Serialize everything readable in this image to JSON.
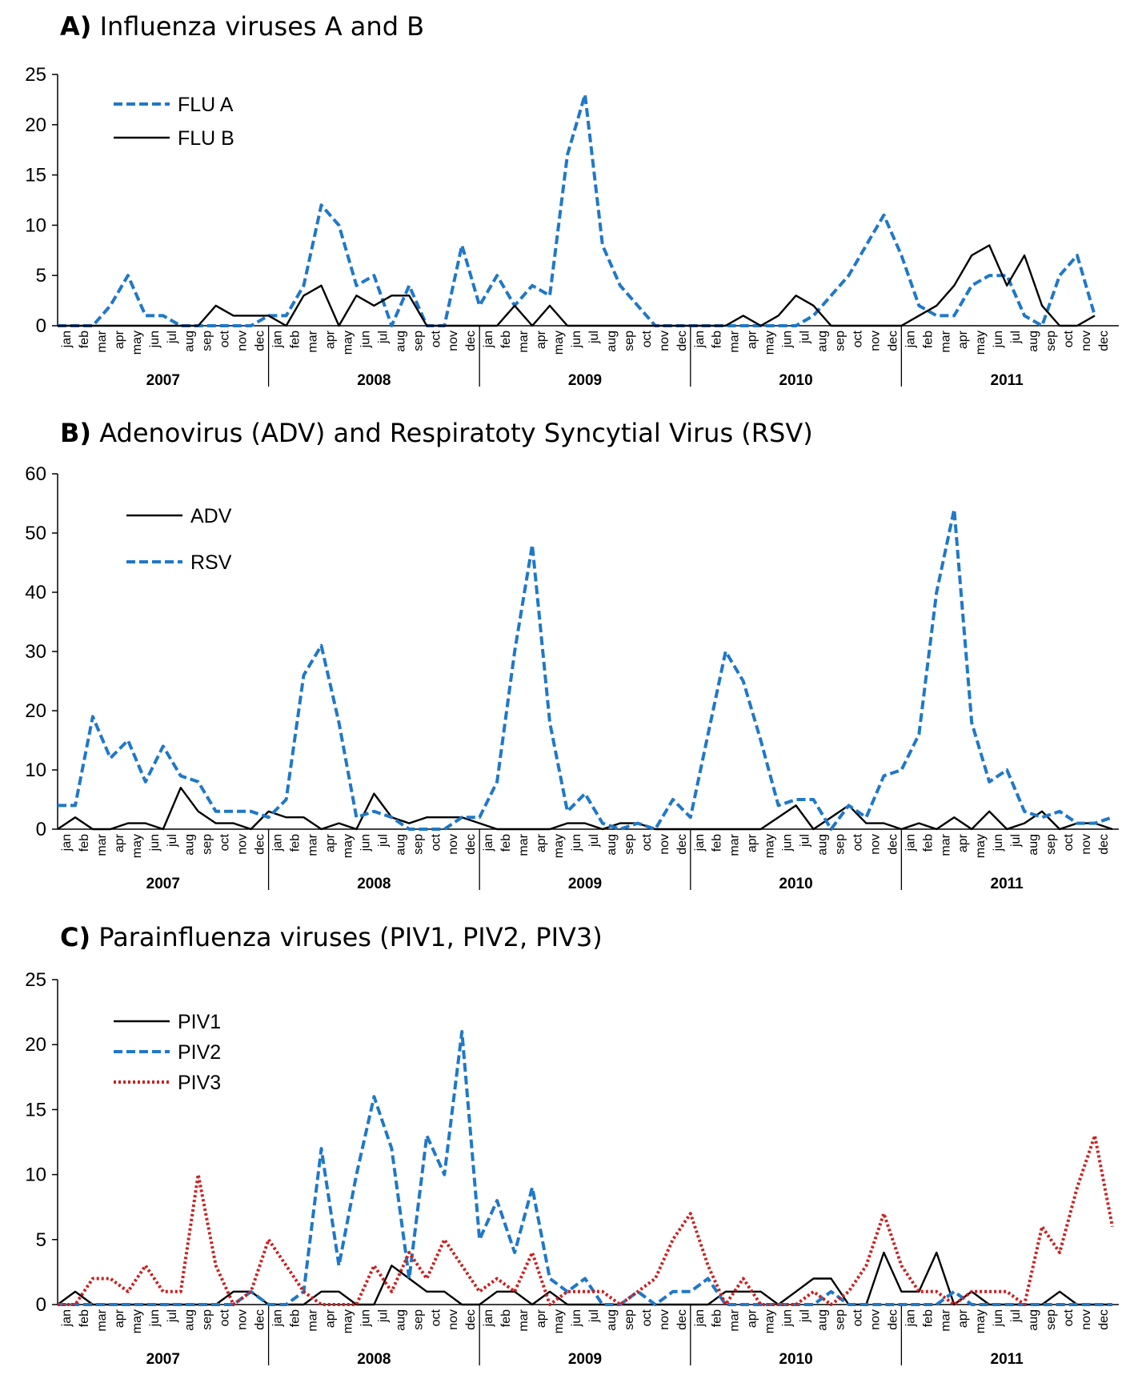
{
  "chart_data": [
    {
      "type": "line",
      "panel_letter": "A)",
      "title": "Influenza viruses A and B",
      "years": [
        "2007",
        "2008",
        "2009",
        "2010",
        "2011"
      ],
      "month_labels": [
        "jan",
        "feb",
        "mar",
        "apr",
        "may",
        "jun",
        "jul",
        "aug",
        "sep",
        "oct",
        "nov",
        "dec"
      ],
      "ylim": [
        0,
        25
      ],
      "yticks": [
        0,
        5,
        10,
        15,
        20,
        25
      ],
      "legend_position": "top-left",
      "series": [
        {
          "name": "FLU A",
          "color": "#1f78c8",
          "style": "dashed",
          "values": [
            0,
            0,
            0,
            2,
            5,
            1,
            1,
            0,
            0,
            0,
            0,
            0,
            1,
            1,
            4,
            12,
            10,
            4,
            5,
            0,
            4,
            0,
            0,
            8,
            2,
            5,
            2,
            4,
            3,
            17,
            23,
            8,
            4,
            2,
            0,
            0,
            0,
            0,
            0,
            0,
            0,
            0,
            0,
            1,
            3,
            5,
            8,
            11,
            7,
            2,
            1,
            1,
            4,
            5,
            5,
            1,
            0,
            5,
            7,
            1
          ]
        },
        {
          "name": "FLU B",
          "color": "#000000",
          "style": "solid",
          "values": [
            0,
            0,
            0,
            0,
            0,
            0,
            0,
            0,
            0,
            2,
            1,
            1,
            1,
            0,
            3,
            4,
            0,
            3,
            2,
            3,
            3,
            0,
            0,
            0,
            0,
            0,
            2,
            0,
            2,
            0,
            0,
            0,
            0,
            0,
            0,
            0,
            0,
            0,
            0,
            1,
            0,
            1,
            3,
            2,
            0,
            0,
            0,
            0,
            0,
            1,
            2,
            4,
            7,
            8,
            4,
            7,
            2,
            0,
            0,
            1
          ]
        }
      ]
    },
    {
      "type": "line",
      "panel_letter": "B)",
      "title": "Adenovirus (ADV) and Respiratoty Syncytial Virus (RSV)",
      "years": [
        "2007",
        "2008",
        "2009",
        "2010",
        "2011"
      ],
      "month_labels": [
        "jan",
        "feb",
        "mar",
        "apr",
        "may",
        "jun",
        "jul",
        "aug",
        "sep",
        "oct",
        "nov",
        "dec"
      ],
      "ylim": [
        0,
        60
      ],
      "yticks": [
        0,
        10,
        20,
        30,
        40,
        50,
        60
      ],
      "legend_position": "top-left",
      "series": [
        {
          "name": "ADV",
          "color": "#000000",
          "style": "solid",
          "values": [
            0,
            2,
            0,
            0,
            1,
            1,
            0,
            7,
            3,
            1,
            1,
            0,
            3,
            2,
            2,
            0,
            1,
            0,
            6,
            2,
            1,
            2,
            2,
            2,
            1,
            0,
            0,
            0,
            0,
            1,
            1,
            0,
            1,
            1,
            0,
            0,
            0,
            0,
            0,
            0,
            0,
            2,
            4,
            0,
            2,
            4,
            1,
            1,
            0,
            1,
            0,
            2,
            0,
            3,
            0,
            1,
            3,
            0,
            1,
            1,
            0
          ]
        },
        {
          "name": "RSV",
          "color": "#1f78c8",
          "style": "dashed",
          "values": [
            4,
            4,
            19,
            12,
            15,
            8,
            14,
            9,
            8,
            3,
            3,
            3,
            2,
            5,
            26,
            31,
            18,
            2,
            3,
            2,
            0,
            0,
            0,
            2,
            2,
            8,
            30,
            48,
            18,
            3,
            6,
            1,
            0,
            1,
            0,
            5,
            2,
            16,
            30,
            25,
            15,
            4,
            5,
            5,
            0,
            4,
            2,
            9,
            10,
            16,
            40,
            54,
            18,
            8,
            10,
            3,
            2,
            3,
            1,
            1,
            2
          ]
        }
      ]
    },
    {
      "type": "line",
      "panel_letter": "C)",
      "title": "Parainfluenza viruses (PIV1, PIV2, PIV3)",
      "years": [
        "2007",
        "2008",
        "2009",
        "2010",
        "2011"
      ],
      "month_labels": [
        "jan",
        "feb",
        "mar",
        "apr",
        "may",
        "jun",
        "jul",
        "aug",
        "sep",
        "oct",
        "nov",
        "dec"
      ],
      "ylim": [
        0,
        25
      ],
      "yticks": [
        0,
        5,
        10,
        15,
        20,
        25
      ],
      "legend_position": "top-left",
      "series": [
        {
          "name": "PIV1",
          "color": "#000000",
          "style": "solid",
          "values": [
            0,
            1,
            0,
            0,
            0,
            0,
            0,
            0,
            0,
            0,
            1,
            1,
            0,
            0,
            0,
            1,
            1,
            0,
            0,
            3,
            2,
            1,
            1,
            0,
            0,
            1,
            1,
            0,
            1,
            0,
            0,
            0,
            0,
            0,
            0,
            0,
            0,
            0,
            1,
            1,
            1,
            0,
            1,
            2,
            2,
            0,
            0,
            4,
            1,
            1,
            4,
            0,
            1,
            0,
            0,
            0,
            0,
            1,
            0,
            0,
            0
          ]
        },
        {
          "name": "PIV2",
          "color": "#1f78c8",
          "style": "dashed",
          "values": [
            0,
            0,
            0,
            0,
            0,
            0,
            0,
            0,
            0,
            0,
            0,
            1,
            0,
            0,
            1,
            12,
            3,
            10,
            16,
            12,
            2,
            13,
            10,
            21,
            5,
            8,
            4,
            9,
            2,
            1,
            2,
            0,
            0,
            1,
            0,
            1,
            1,
            2,
            0,
            0,
            0,
            0,
            0,
            0,
            1,
            0,
            0,
            0,
            0,
            0,
            0,
            1,
            0,
            0,
            0,
            0,
            0,
            0,
            0,
            0,
            0
          ]
        },
        {
          "name": "PIV3",
          "color": "#cc1f1f",
          "style": "dotted",
          "values": [
            0,
            0,
            2,
            2,
            1,
            3,
            1,
            1,
            10,
            3,
            0,
            1,
            5,
            3,
            1,
            0,
            0,
            0,
            3,
            1,
            4,
            2,
            5,
            3,
            1,
            2,
            1,
            4,
            0,
            1,
            1,
            1,
            0,
            1,
            2,
            5,
            7,
            3,
            0,
            2,
            0,
            0,
            0,
            1,
            0,
            1,
            3,
            7,
            3,
            1,
            1,
            0,
            1,
            1,
            1,
            0,
            6,
            4,
            9,
            13,
            6
          ]
        }
      ]
    }
  ]
}
